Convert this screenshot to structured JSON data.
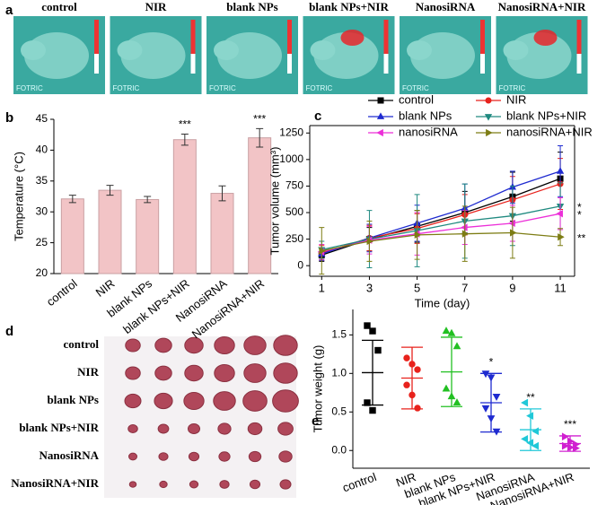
{
  "panel_labels": [
    "a",
    "b",
    "c",
    "d",
    "e"
  ],
  "panel_a": {
    "labels": [
      "control",
      "NIR",
      "blank NPs",
      "blank NPs+NIR",
      "NanosiRNA",
      "NanosiRNA+NIR"
    ],
    "brand": "FOTRIC"
  },
  "panel_d": {
    "labels": [
      "control",
      "NIR",
      "blank NPs",
      "blank NPs+NIR",
      "NanosiRNA",
      "NanosiRNA+NIR"
    ]
  },
  "chart_data": [
    {
      "type": "bar",
      "ylabel": "Temperature (°C)",
      "categories": [
        "control",
        "NIR",
        "blank NPs",
        "blank NPs+NIR",
        "NanosiRNA",
        "NanosiRNA+NIR"
      ],
      "values": [
        32.1,
        33.5,
        32.0,
        41.7,
        33.0,
        42.0
      ],
      "errors": [
        0.6,
        0.8,
        0.5,
        0.9,
        1.2,
        1.5
      ],
      "color": "#f2c4c6",
      "ylim": [
        20,
        45
      ],
      "yticks": [
        20,
        25,
        30,
        35,
        40,
        45
      ],
      "annotations": [
        {
          "text": "***",
          "x": "blank NPs+NIR"
        },
        {
          "text": "***",
          "x": "NanosiRNA+NIR"
        }
      ]
    },
    {
      "type": "line",
      "xlabel": "Time (day)",
      "ylabel": "Tumor volume (mm³)",
      "x": [
        1,
        3,
        5,
        7,
        9,
        11
      ],
      "xlim": [
        0.5,
        11.6
      ],
      "xticks": [
        1,
        3,
        5,
        7,
        9,
        11
      ],
      "ylim": [
        -100,
        1320
      ],
      "yticks": [
        0,
        250,
        500,
        750,
        1000,
        1250
      ],
      "series": [
        {
          "name": "control",
          "color": "#000000",
          "marker": "square",
          "values": [
            100,
            250,
            370,
            500,
            650,
            820
          ],
          "errors": [
            60,
            110,
            150,
            200,
            230,
            250
          ]
        },
        {
          "name": "NIR",
          "color": "#e8221c",
          "marker": "circle",
          "values": [
            120,
            260,
            350,
            480,
            620,
            770
          ],
          "errors": [
            70,
            120,
            140,
            190,
            220,
            240
          ]
        },
        {
          "name": "blank NPs",
          "color": "#1f2bd0",
          "marker": "triangle-up",
          "values": [
            110,
            260,
            400,
            540,
            740,
            890
          ],
          "errors": [
            60,
            130,
            170,
            230,
            150,
            240
          ]
        },
        {
          "name": "blank NPs+NIR",
          "color": "#208a80",
          "marker": "triangle-down",
          "values": [
            150,
            250,
            330,
            420,
            470,
            560
          ],
          "errors": [
            80,
            270,
            340,
            350,
            280,
            220
          ]
        },
        {
          "name": "nanosiRNA",
          "color": "#ec2fd8",
          "marker": "triangle-left",
          "values": [
            130,
            240,
            300,
            360,
            400,
            490
          ],
          "errors": [
            70,
            130,
            200,
            160,
            170,
            150
          ]
        },
        {
          "name": "nanosiRNA+NIR",
          "color": "#7d7d14",
          "marker": "triangle-right",
          "values": [
            140,
            230,
            290,
            300,
            310,
            270
          ],
          "errors": [
            220,
            190,
            230,
            260,
            240,
            80
          ]
        }
      ],
      "annotations": [
        {
          "text": "*",
          "series": "blank NPs+NIR"
        },
        {
          "text": "*",
          "series": "nanosiRNA"
        },
        {
          "text": "**",
          "series": "nanosiRNA+NIR"
        }
      ]
    },
    {
      "type": "scatter",
      "ylabel": "Tumor weight (g)",
      "categories": [
        "control",
        "NIR",
        "blank NPs",
        "blank NPs+NIR",
        "NanosiRNA",
        "NanosiRNA+NIR"
      ],
      "points": [
        [
          1.62,
          1.55,
          1.3,
          0.62,
          0.52
        ],
        [
          1.2,
          1.12,
          1.05,
          0.85,
          0.72,
          0.55
        ],
        [
          1.55,
          1.52,
          1.35,
          0.8,
          0.7,
          0.62
        ],
        [
          1.0,
          0.95,
          0.7,
          0.55,
          0.42,
          0.25
        ],
        [
          0.62,
          0.45,
          0.25,
          0.15,
          0.1,
          0.06
        ],
        [
          0.18,
          0.12,
          0.08,
          0.06,
          0.04,
          0.03
        ]
      ],
      "means": [
        1.01,
        0.94,
        1.02,
        0.62,
        0.27,
        0.09
      ],
      "errors": [
        0.42,
        0.4,
        0.45,
        0.38,
        0.27,
        0.1
      ],
      "colors": [
        "#000000",
        "#e8221c",
        "#22c022",
        "#1f2bd0",
        "#20c8d8",
        "#d020d0"
      ],
      "markers": [
        "square",
        "circle",
        "triangle-up",
        "triangle-down",
        "triangle-left",
        "triangle-right"
      ],
      "ylim": [
        -0.23,
        1.83
      ],
      "yticks": [
        {
          "value": 0,
          "label": "0.0"
        },
        {
          "value": 0.5,
          "label": "0.5"
        },
        {
          "value": 1,
          "label": "1.0"
        },
        {
          "value": 1.5,
          "label": "1.5"
        }
      ],
      "annotations": [
        {
          "text": "*",
          "x": "blank NPs+NIR"
        },
        {
          "text": "**",
          "x": "NanosiRNA"
        },
        {
          "text": "***",
          "x": "NanosiRNA+NIR"
        }
      ]
    }
  ]
}
